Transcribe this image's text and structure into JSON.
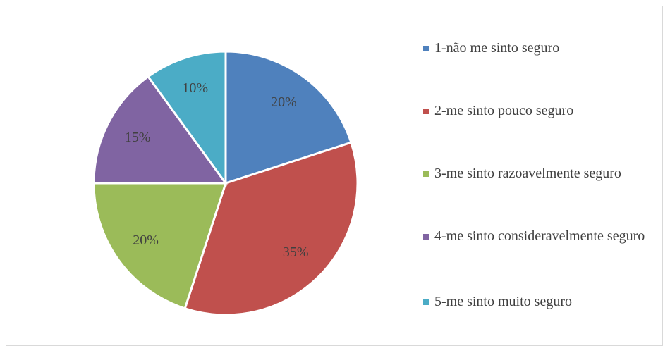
{
  "chart_data": {
    "type": "pie",
    "categories": [
      "1-não me sinto seguro",
      "2-me sinto pouco seguro",
      "3-me sinto razoavelmente seguro",
      "4-me sinto consideravelmente seguro",
      "5-me sinto muito seguro"
    ],
    "values": [
      20,
      35,
      20,
      15,
      10
    ],
    "value_labels": [
      "20%",
      "35%",
      "20%",
      "15%",
      "10%"
    ],
    "colors": [
      "#4f81bd",
      "#c0504d",
      "#9bbb59",
      "#8064a2",
      "#4bacc6"
    ],
    "legend": "right"
  }
}
